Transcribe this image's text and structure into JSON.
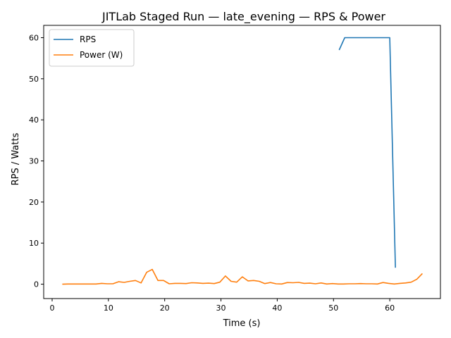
{
  "chart_data": {
    "type": "line",
    "title": "JITLab Staged Run — late_evening — RPS & Power",
    "xlabel": "Time (s)",
    "ylabel": "RPS / Watts",
    "xlim": [
      -1.5,
      69.0
    ],
    "ylim": [
      -3.5,
      63.0
    ],
    "xticks": [
      0,
      10,
      20,
      30,
      40,
      50,
      60
    ],
    "yticks": [
      0,
      10,
      20,
      30,
      40,
      50,
      60
    ],
    "grid": false,
    "legend_position": "top-left",
    "series": [
      {
        "name": "RPS",
        "color": "#1f77b4",
        "x": [
          51,
          52,
          53,
          54,
          55,
          56,
          57,
          58,
          59,
          60,
          61
        ],
        "y": [
          57,
          60,
          60,
          60,
          60,
          60,
          60,
          60,
          60,
          60,
          4
        ]
      },
      {
        "name": "Power (W)",
        "color": "#ff7f0e",
        "x": [
          1.8,
          2.8,
          3.8,
          4.8,
          5.8,
          6.8,
          7.8,
          8.8,
          9.8,
          10.8,
          11.8,
          12.8,
          13.8,
          14.8,
          15.8,
          16.8,
          17.8,
          18.8,
          19.8,
          20.8,
          21.8,
          22.8,
          23.8,
          24.8,
          25.8,
          26.8,
          27.8,
          28.8,
          29.8,
          30.8,
          31.8,
          32.8,
          33.8,
          34.8,
          35.8,
          36.8,
          37.8,
          38.8,
          39.8,
          40.8,
          41.8,
          42.8,
          43.8,
          44.8,
          45.8,
          46.8,
          47.8,
          48.8,
          49.8,
          50.8,
          51.8,
          52.8,
          53.8,
          54.8,
          55.8,
          56.8,
          57.8,
          58.8,
          59.8,
          60.8,
          61.8,
          62.8,
          63.8,
          64.8,
          65.8
        ],
        "y": [
          0.0,
          0.05,
          0.05,
          0.05,
          0.05,
          0.05,
          0.05,
          0.2,
          0.1,
          0.1,
          0.6,
          0.45,
          0.7,
          0.9,
          0.3,
          2.9,
          3.6,
          0.9,
          0.9,
          0.1,
          0.2,
          0.2,
          0.15,
          0.35,
          0.3,
          0.2,
          0.25,
          0.15,
          0.5,
          2.0,
          0.7,
          0.5,
          1.8,
          0.8,
          0.9,
          0.7,
          0.15,
          0.4,
          0.1,
          0.05,
          0.4,
          0.35,
          0.45,
          0.2,
          0.25,
          0.1,
          0.3,
          0.05,
          0.15,
          0.05,
          0.05,
          0.1,
          0.1,
          0.15,
          0.1,
          0.1,
          0.05,
          0.4,
          0.2,
          0.05,
          0.2,
          0.3,
          0.5,
          1.2,
          2.6
        ]
      }
    ]
  }
}
